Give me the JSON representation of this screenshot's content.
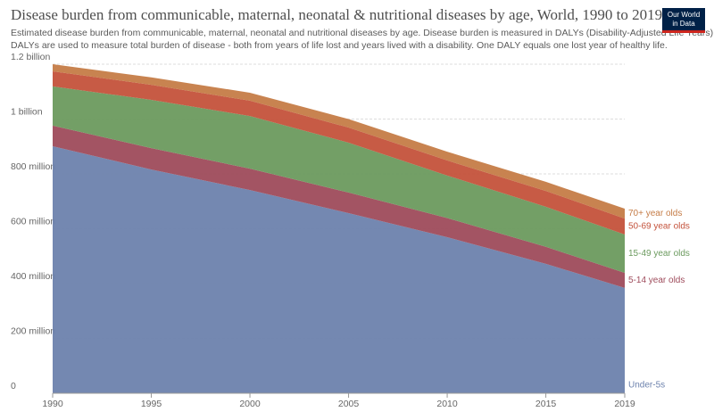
{
  "chart_data": {
    "type": "stacked-area",
    "title": "Disease burden from communicable, maternal, neonatal & nutritional diseases by age, World, 1990 to 2019",
    "subtitle": [
      "Estimated disease burden from communicable, maternal, neonatal and nutritional diseases by age. Disease burden is measured in DALYs (Disability-Adjusted Life Years).",
      "DALYs are used to measure total burden of disease - both from years of life lost and years lived with a disability. One DALY equals one lost year of healthy life."
    ],
    "logo": [
      "Our World",
      "in Data"
    ],
    "x": [
      1990,
      1995,
      2000,
      2005,
      2010,
      2015,
      2019
    ],
    "xlim": [
      1990,
      2019
    ],
    "xticks": [
      1990,
      1995,
      2000,
      2005,
      2010,
      2015,
      2019
    ],
    "ylim": [
      0,
      1200000000
    ],
    "yticks": [
      0,
      {
        "value": 200000000,
        "label": "200 million"
      },
      {
        "value": 400000000,
        "label": "400 million"
      },
      {
        "value": 600000000,
        "label": "600 million"
      },
      {
        "value": 800000000,
        "label": "800 million"
      },
      {
        "value": 1000000000,
        "label": "1 billion"
      },
      {
        "value": 1200000000,
        "label": "1.2 billion"
      }
    ],
    "grid": true,
    "series": [
      {
        "name": "Under-5s",
        "color": "#6d82ad",
        "values": [
          901000000,
          816000000,
          741000000,
          657000000,
          569000000,
          472000000,
          384000000
        ]
      },
      {
        "name": "5-14 year olds",
        "color": "#9e4b5b",
        "values": [
          75000000,
          78000000,
          78000000,
          75000000,
          70000000,
          62000000,
          55000000
        ]
      },
      {
        "name": "15-49 year olds",
        "color": "#6b9a5e",
        "values": [
          143000000,
          176000000,
          192000000,
          182000000,
          155000000,
          146000000,
          140000000
        ]
      },
      {
        "name": "50-69 year olds",
        "color": "#c4523b",
        "values": [
          55000000,
          55000000,
          56000000,
          55000000,
          55000000,
          58000000,
          58000000
        ]
      },
      {
        "name": "70+ year olds",
        "color": "#c57c47",
        "values": [
          26000000,
          27000000,
          29000000,
          31000000,
          32000000,
          33000000,
          36000000
        ]
      }
    ]
  }
}
